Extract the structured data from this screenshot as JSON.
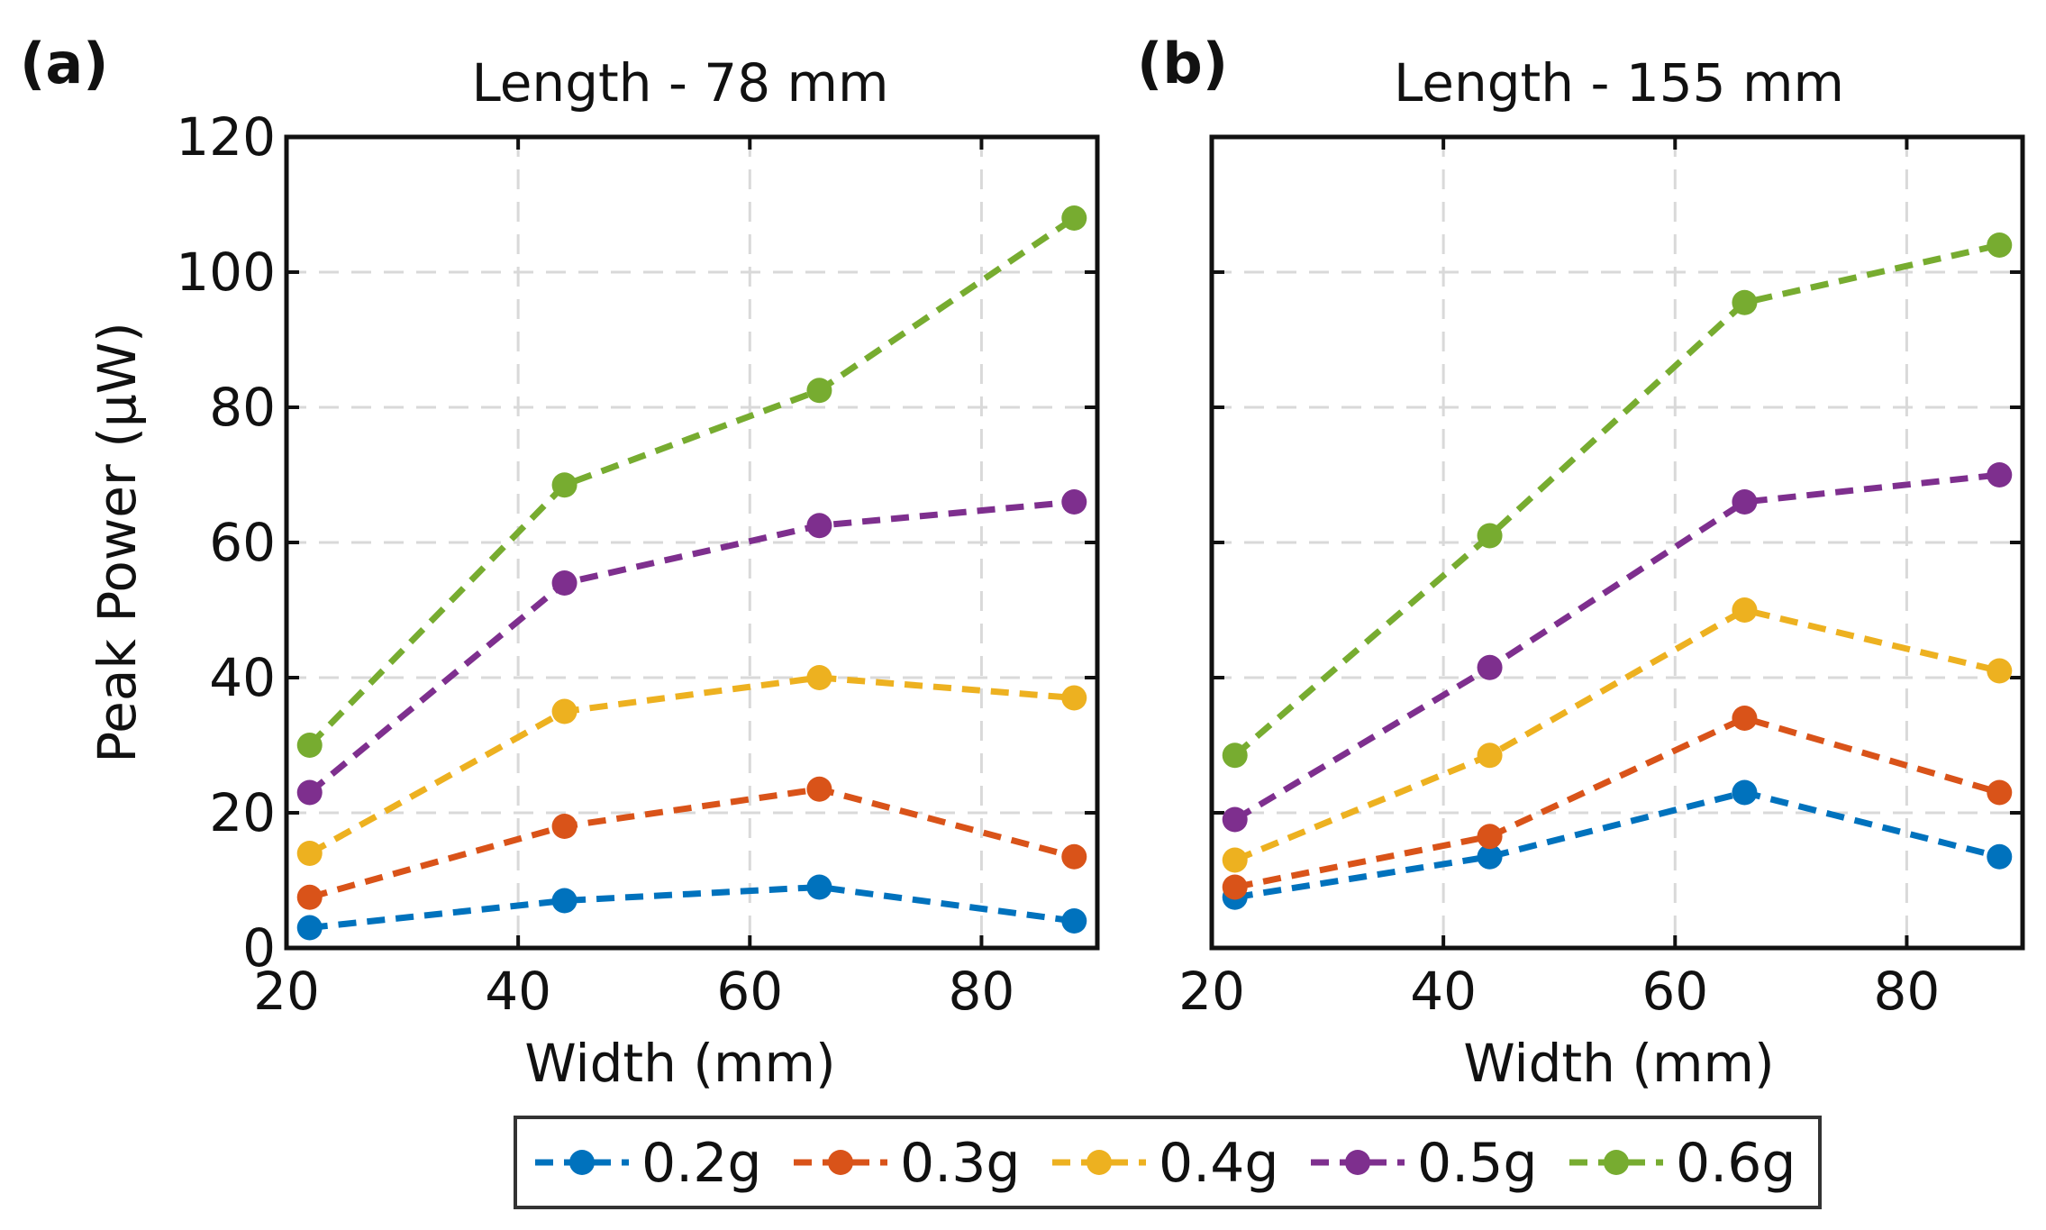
{
  "chart_data": [
    {
      "type": "line",
      "panel_label": "(a)",
      "title": "Length - 78 mm",
      "xlabel": "Width (mm)",
      "ylabel": "Peak Power (μW)",
      "xlim": [
        20,
        90
      ],
      "ylim": [
        0,
        120
      ],
      "xticks": [
        20,
        40,
        60,
        80
      ],
      "yticks": [
        0,
        20,
        40,
        60,
        80,
        100,
        120
      ],
      "x": [
        22,
        44,
        66,
        88
      ],
      "series": [
        {
          "name": "0.2g",
          "color": "#0072BD",
          "values": [
            3,
            7,
            9,
            4
          ]
        },
        {
          "name": "0.3g",
          "color": "#D95319",
          "values": [
            7.5,
            18,
            23.5,
            13.5
          ]
        },
        {
          "name": "0.4g",
          "color": "#EDB120",
          "values": [
            14,
            35,
            40,
            37
          ]
        },
        {
          "name": "0.5g",
          "color": "#7E2F8E",
          "values": [
            23,
            54,
            62.5,
            66
          ]
        },
        {
          "name": "0.6g",
          "color": "#77AC30",
          "values": [
            30,
            68.5,
            82.5,
            108
          ]
        }
      ]
    },
    {
      "type": "line",
      "panel_label": "(b)",
      "title": "Length - 155 mm",
      "xlabel": "Width (mm)",
      "ylabel": "",
      "xlim": [
        20,
        90
      ],
      "ylim": [
        0,
        120
      ],
      "xticks": [
        20,
        40,
        60,
        80
      ],
      "yticks": [
        0,
        20,
        40,
        60,
        80,
        100,
        120
      ],
      "x": [
        22,
        44,
        66,
        88
      ],
      "series": [
        {
          "name": "0.2g",
          "color": "#0072BD",
          "values": [
            7.5,
            13.5,
            23,
            13.5
          ]
        },
        {
          "name": "0.3g",
          "color": "#D95319",
          "values": [
            9,
            16.5,
            34,
            23
          ]
        },
        {
          "name": "0.4g",
          "color": "#EDB120",
          "values": [
            13,
            28.5,
            50,
            41
          ]
        },
        {
          "name": "0.5g",
          "color": "#7E2F8E",
          "values": [
            19,
            41.5,
            66,
            70
          ]
        },
        {
          "name": "0.6g",
          "color": "#77AC30",
          "values": [
            28.5,
            61,
            95.5,
            104
          ]
        }
      ]
    }
  ],
  "legend": {
    "items": [
      {
        "label": "0.2g",
        "color": "#0072BD"
      },
      {
        "label": "0.3g",
        "color": "#D95319"
      },
      {
        "label": "0.4g",
        "color": "#EDB120"
      },
      {
        "label": "0.5g",
        "color": "#7E2F8E"
      },
      {
        "label": "0.6g",
        "color": "#77AC30"
      }
    ]
  }
}
